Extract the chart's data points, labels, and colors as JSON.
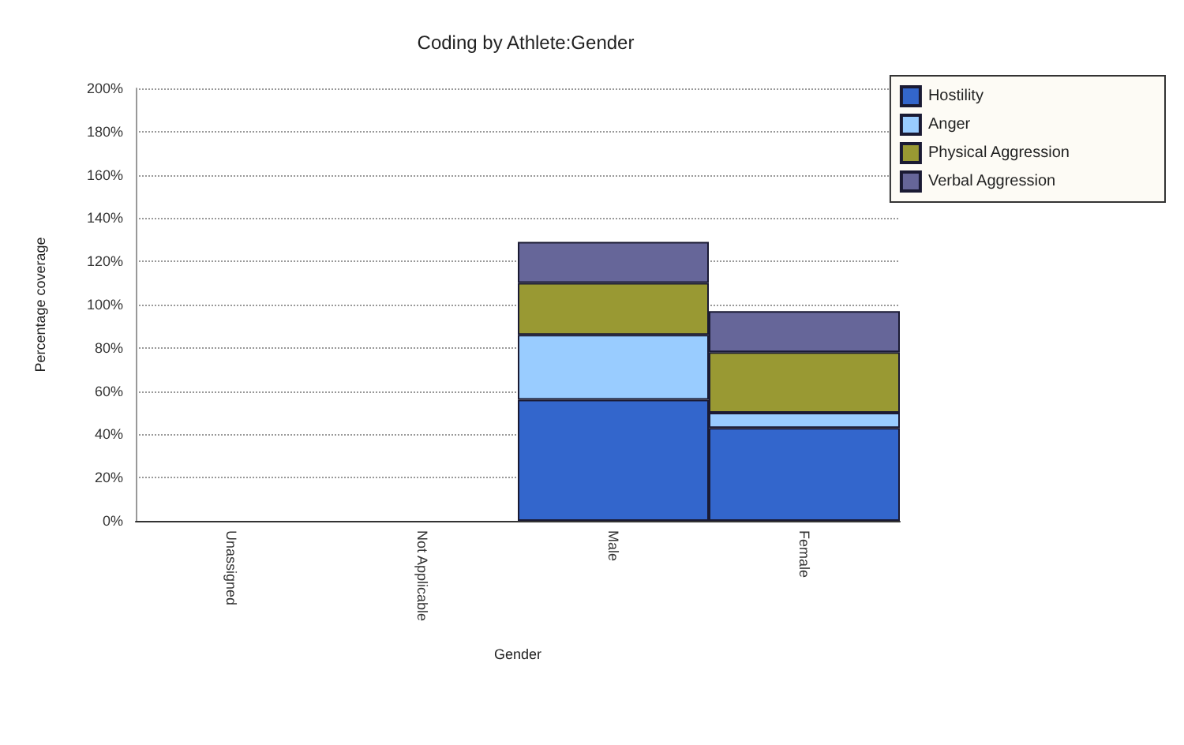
{
  "chart_data": {
    "type": "bar",
    "title": "Coding by Athlete:Gender",
    "xlabel": "Gender",
    "ylabel": "Percentage coverage",
    "categories": [
      "Unassigned",
      "Not Applicable",
      "Male",
      "Female"
    ],
    "stacked": true,
    "series": [
      {
        "name": "Hostility",
        "color": "#3366cc",
        "values": [
          null,
          null,
          56,
          43
        ]
      },
      {
        "name": "Anger",
        "color": "#99ccff",
        "values": [
          null,
          null,
          30,
          7
        ]
      },
      {
        "name": "Physical Aggression",
        "color": "#999933",
        "values": [
          null,
          null,
          24,
          28
        ]
      },
      {
        "name": "Verbal Aggression",
        "color": "#666699",
        "values": [
          null,
          null,
          19,
          19
        ]
      }
    ],
    "ylim": [
      0,
      200
    ],
    "yticks": [
      {
        "value": 0,
        "label": "0%"
      },
      {
        "value": 20,
        "label": "20%"
      },
      {
        "value": 40,
        "label": "40%"
      },
      {
        "value": 60,
        "label": "60%"
      },
      {
        "value": 80,
        "label": "80%"
      },
      {
        "value": 100,
        "label": "100%"
      },
      {
        "value": 120,
        "label": "120%"
      },
      {
        "value": 140,
        "label": "140%"
      },
      {
        "value": 160,
        "label": "160%"
      },
      {
        "value": 180,
        "label": "180%"
      },
      {
        "value": 200,
        "label": "200%"
      }
    ],
    "grid": "y",
    "legend": "right"
  }
}
